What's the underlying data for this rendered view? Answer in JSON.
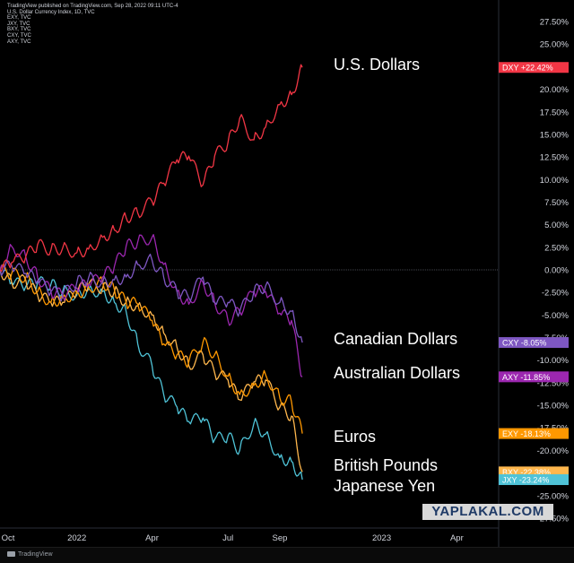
{
  "header": {
    "lines": [
      "TradingView published on TradingView.com, Sep 28, 2022 09:11 UTC-4",
      "U.S. Dollar Currency Index, 1D, TVC",
      "EXY, TVC",
      "JXY, TVC",
      "BXY, TVC",
      "CXY, TVC",
      "AXY, TVC"
    ]
  },
  "footer": {
    "brand": "TradingView"
  },
  "watermark": "YAPLAKAL.COM",
  "chart_data": {
    "type": "line",
    "y_axis": {
      "ticks": [
        27.5,
        25,
        22.5,
        20,
        17.5,
        15,
        12.5,
        10,
        7.5,
        5,
        2.5,
        0,
        -2.5,
        -5,
        -7.5,
        -10,
        -12.5,
        -15,
        -17.5,
        -20,
        -22.5,
        -25,
        -27.5
      ],
      "tick_labels": [
        "27.50%",
        "25.00%",
        "22.50%",
        "20.00%",
        "17.50%",
        "15.00%",
        "12.50%",
        "10.00%",
        "7.50%",
        "5.00%",
        "2.50%",
        "0.00%",
        "-2.50%",
        "-5.00%",
        "-7.50%",
        "-10.00%",
        "-12.50%",
        "-15.00%",
        "-17.50%",
        "-20.00%",
        "-22.50%",
        "-25.00%",
        "-27.50%"
      ],
      "range": [
        -28.5,
        28.5
      ],
      "position": "right"
    },
    "x_axis": {
      "range": [
        "2021-10-01",
        "2023-05-20"
      ],
      "ticks": [
        {
          "date": "2021-10-01",
          "label": "Oct"
        },
        {
          "date": "2022-01-01",
          "label": "2022"
        },
        {
          "date": "2022-04-01",
          "label": "Apr"
        },
        {
          "date": "2022-07-01",
          "label": "Jul"
        },
        {
          "date": "2022-09-01",
          "label": "Sep"
        },
        {
          "date": "2023-01-01",
          "label": "2023"
        },
        {
          "date": "2023-04-01",
          "label": "Apr"
        }
      ]
    },
    "grid": false,
    "baseline": 0,
    "series": [
      {
        "name": "U.S. Dollars",
        "symbol": "DXY",
        "color": "#f23645",
        "badge": "DXY  +22.42%",
        "points": [
          [
            "2021-10-01",
            0
          ],
          [
            "2021-10-15",
            0.8
          ],
          [
            "2021-11-01",
            1.5
          ],
          [
            "2021-11-15",
            2.8
          ],
          [
            "2021-12-01",
            2.2
          ],
          [
            "2021-12-15",
            2.4
          ],
          [
            "2022-01-01",
            1.9
          ],
          [
            "2022-01-15",
            2.3
          ],
          [
            "2022-02-01",
            3.6
          ],
          [
            "2022-02-15",
            4.4
          ],
          [
            "2022-03-01",
            5.8
          ],
          [
            "2022-03-15",
            6.3
          ],
          [
            "2022-04-01",
            7.6
          ],
          [
            "2022-04-15",
            9.6
          ],
          [
            "2022-05-01",
            12.2
          ],
          [
            "2022-05-15",
            12.6
          ],
          [
            "2022-06-01",
            9.4
          ],
          [
            "2022-06-15",
            12.6
          ],
          [
            "2022-07-01",
            14.1
          ],
          [
            "2022-07-15",
            16.8
          ],
          [
            "2022-08-01",
            14.4
          ],
          [
            "2022-08-15",
            15.8
          ],
          [
            "2022-09-01",
            18.3
          ],
          [
            "2022-09-15",
            19.4
          ],
          [
            "2022-09-28",
            22.42
          ]
        ]
      },
      {
        "name": "Canadian Dollars",
        "symbol": "CXY",
        "color": "#7e57c2",
        "badge": "CXY  -8.05%",
        "points": [
          [
            "2021-10-01",
            0
          ],
          [
            "2021-10-15",
            0.5
          ],
          [
            "2021-11-01",
            -0.4
          ],
          [
            "2021-11-15",
            -1.2
          ],
          [
            "2021-12-01",
            -2.4
          ],
          [
            "2021-12-15",
            -2.8
          ],
          [
            "2022-01-01",
            -1.4
          ],
          [
            "2022-01-15",
            -0.9
          ],
          [
            "2022-02-01",
            -1.4
          ],
          [
            "2022-02-15",
            -1.1
          ],
          [
            "2022-03-01",
            -0.8
          ],
          [
            "2022-03-15",
            0.6
          ],
          [
            "2022-04-01",
            1.1
          ],
          [
            "2022-04-15",
            -0.8
          ],
          [
            "2022-05-01",
            -2.4
          ],
          [
            "2022-05-15",
            -3.1
          ],
          [
            "2022-06-01",
            -0.8
          ],
          [
            "2022-06-15",
            -3.6
          ],
          [
            "2022-07-01",
            -3.6
          ],
          [
            "2022-07-15",
            -4.6
          ],
          [
            "2022-08-01",
            -2.4
          ],
          [
            "2022-08-15",
            -1.8
          ],
          [
            "2022-09-01",
            -3.6
          ],
          [
            "2022-09-15",
            -4.6
          ],
          [
            "2022-09-28",
            -8.05
          ]
        ]
      },
      {
        "name": "Australian Dollars",
        "symbol": "AXY",
        "color": "#9c27b0",
        "badge": "AXY  -11.85%",
        "points": [
          [
            "2021-10-01",
            0
          ],
          [
            "2021-10-15",
            2.6
          ],
          [
            "2021-11-01",
            1.4
          ],
          [
            "2021-11-15",
            -0.8
          ],
          [
            "2021-12-01",
            -2.4
          ],
          [
            "2021-12-15",
            -2.8
          ],
          [
            "2022-01-01",
            -2.0
          ],
          [
            "2022-01-15",
            -1.6
          ],
          [
            "2022-02-01",
            -0.8
          ],
          [
            "2022-02-15",
            0.4
          ],
          [
            "2022-03-01",
            2.6
          ],
          [
            "2022-03-15",
            3.1
          ],
          [
            "2022-04-01",
            3.6
          ],
          [
            "2022-04-15",
            0.6
          ],
          [
            "2022-05-01",
            -2.4
          ],
          [
            "2022-05-15",
            -3.8
          ],
          [
            "2022-06-01",
            -1.4
          ],
          [
            "2022-06-15",
            -3.6
          ],
          [
            "2022-07-01",
            -5.6
          ],
          [
            "2022-07-15",
            -4.6
          ],
          [
            "2022-08-01",
            -2.4
          ],
          [
            "2022-08-15",
            -2.4
          ],
          [
            "2022-09-01",
            -4.8
          ],
          [
            "2022-09-15",
            -5.6
          ],
          [
            "2022-09-28",
            -11.85
          ]
        ]
      },
      {
        "name": "Euros",
        "symbol": "EXY",
        "color": "#ff9800",
        "badge": "EXY  -18.13%",
        "points": [
          [
            "2021-10-01",
            0
          ],
          [
            "2021-10-15",
            -0.4
          ],
          [
            "2021-11-01",
            -0.8
          ],
          [
            "2021-11-15",
            -2.4
          ],
          [
            "2021-12-01",
            -3.6
          ],
          [
            "2021-12-15",
            -3.1
          ],
          [
            "2022-01-01",
            -2.6
          ],
          [
            "2022-01-15",
            -2.0
          ],
          [
            "2022-02-01",
            -1.4
          ],
          [
            "2022-02-15",
            -2.2
          ],
          [
            "2022-03-01",
            -3.6
          ],
          [
            "2022-03-15",
            -3.8
          ],
          [
            "2022-04-01",
            -5.6
          ],
          [
            "2022-04-15",
            -8.2
          ],
          [
            "2022-05-01",
            -9.4
          ],
          [
            "2022-05-15",
            -10.2
          ],
          [
            "2022-06-01",
            -8.0
          ],
          [
            "2022-06-15",
            -9.4
          ],
          [
            "2022-07-01",
            -11.8
          ],
          [
            "2022-07-15",
            -13.8
          ],
          [
            "2022-08-01",
            -12.8
          ],
          [
            "2022-08-15",
            -11.6
          ],
          [
            "2022-09-01",
            -14.2
          ],
          [
            "2022-09-15",
            -14.6
          ],
          [
            "2022-09-28",
            -18.13
          ]
        ]
      },
      {
        "name": "British Pounds",
        "symbol": "BXY",
        "color": "#ffb74d",
        "badge": "BXY  -22.38%",
        "points": [
          [
            "2021-10-01",
            0
          ],
          [
            "2021-10-15",
            -1.4
          ],
          [
            "2021-11-01",
            -1.2
          ],
          [
            "2021-11-15",
            -2.8
          ],
          [
            "2021-12-01",
            -3.6
          ],
          [
            "2021-12-15",
            -3.6
          ],
          [
            "2022-01-01",
            -2.4
          ],
          [
            "2022-01-15",
            -1.6
          ],
          [
            "2022-02-01",
            -2.0
          ],
          [
            "2022-02-15",
            -2.4
          ],
          [
            "2022-03-01",
            -3.6
          ],
          [
            "2022-03-15",
            -4.0
          ],
          [
            "2022-04-01",
            -5.0
          ],
          [
            "2022-04-15",
            -7.0
          ],
          [
            "2022-05-01",
            -8.6
          ],
          [
            "2022-05-15",
            -10.6
          ],
          [
            "2022-06-01",
            -9.4
          ],
          [
            "2022-06-15",
            -11.4
          ],
          [
            "2022-07-01",
            -12.2
          ],
          [
            "2022-07-15",
            -14.4
          ],
          [
            "2022-08-01",
            -12.4
          ],
          [
            "2022-08-15",
            -12.2
          ],
          [
            "2022-09-01",
            -15.2
          ],
          [
            "2022-09-15",
            -16.2
          ],
          [
            "2022-09-28",
            -22.38
          ]
        ]
      },
      {
        "name": "Japanese Yen",
        "symbol": "JXY",
        "color": "#4fc3d7",
        "badge": "JXY  -23.24%",
        "points": [
          [
            "2021-10-01",
            0
          ],
          [
            "2021-10-15",
            -1.4
          ],
          [
            "2021-11-01",
            -1.8
          ],
          [
            "2021-11-15",
            -1.4
          ],
          [
            "2021-12-01",
            -1.6
          ],
          [
            "2021-12-15",
            -2.4
          ],
          [
            "2022-01-01",
            -2.8
          ],
          [
            "2022-01-15",
            -2.2
          ],
          [
            "2022-02-01",
            -2.4
          ],
          [
            "2022-02-15",
            -3.6
          ],
          [
            "2022-03-01",
            -4.6
          ],
          [
            "2022-03-15",
            -8.2
          ],
          [
            "2022-04-01",
            -10.6
          ],
          [
            "2022-04-15",
            -13.8
          ],
          [
            "2022-05-01",
            -15.2
          ],
          [
            "2022-05-15",
            -16.8
          ],
          [
            "2022-06-01",
            -16.4
          ],
          [
            "2022-06-15",
            -18.8
          ],
          [
            "2022-07-01",
            -18.4
          ],
          [
            "2022-07-15",
            -20.0
          ],
          [
            "2022-08-01",
            -17.0
          ],
          [
            "2022-08-15",
            -18.2
          ],
          [
            "2022-09-01",
            -20.8
          ],
          [
            "2022-09-15",
            -21.2
          ],
          [
            "2022-09-28",
            -23.24
          ]
        ]
      }
    ]
  }
}
